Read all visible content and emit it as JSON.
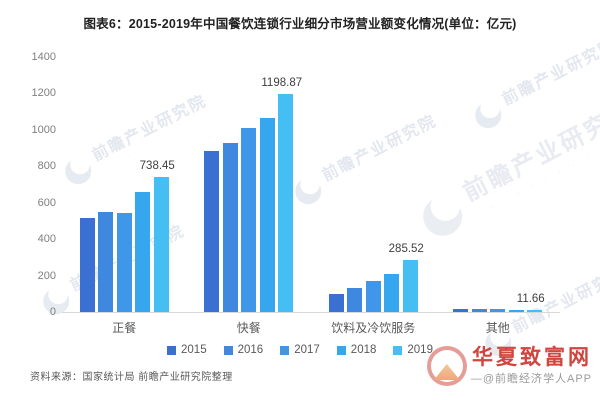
{
  "title": "图表6：2015-2019年中国餐饮连锁行业细分市场营业额变化情况(单位：亿元)",
  "chart_data": {
    "type": "bar",
    "title": "图表6：2015-2019年中国餐饮连锁行业细分市场营业额变化情况(单位：亿元)",
    "unit": "亿元",
    "categories": [
      "正餐",
      "快餐",
      "饮料及冷饮服务",
      "其他"
    ],
    "series": [
      {
        "name": "2015",
        "color": "#3A70D2",
        "values": [
          517,
          885,
          101,
          15
        ]
      },
      {
        "name": "2016",
        "color": "#3E89DF",
        "values": [
          548,
          930,
          134,
          16
        ]
      },
      {
        "name": "2017",
        "color": "#4096E8",
        "values": [
          543,
          1008,
          170,
          14
        ]
      },
      {
        "name": "2018",
        "color": "#36A6EF",
        "values": [
          658,
          1065,
          208,
          13
        ]
      },
      {
        "name": "2019",
        "color": "#45BFF3",
        "values": [
          738.45,
          1198.87,
          285.52,
          11.66
        ],
        "data_labels": [
          "738.45",
          "1198.87",
          "285.52",
          "11.66"
        ]
      }
    ],
    "ylim": [
      0,
      1400
    ],
    "yticks": [
      "0",
      "200",
      "400",
      "600",
      "800",
      "1000",
      "1200",
      "1400"
    ],
    "grid": false,
    "legend_position": "bottom"
  },
  "watermark": {
    "text": "前瞻产业研究院",
    "dots": "· · · · · · · · ·"
  },
  "source_note": "资料来源：国家统计局 前瞻产业研究院整理",
  "footer_brand": {
    "site_name": "华夏致富网",
    "byline": "—@前瞻经济学人APP"
  }
}
